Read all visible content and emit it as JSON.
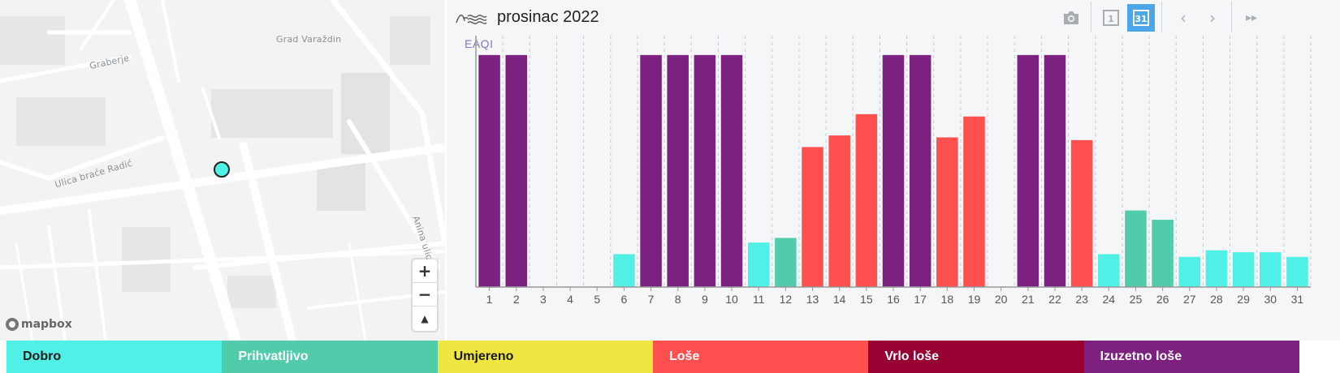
{
  "map": {
    "labels": {
      "grad": "Grad Varaždin",
      "graberje": "Graberje",
      "street1": "Ulica braće Radić",
      "street2": "Anina ulica"
    },
    "zoom_in": "+",
    "zoom_out": "−",
    "compass": "▲",
    "attribution": "mapbox",
    "station_color": "#50f0e6"
  },
  "toolbar": {
    "camera_icon": "camera-icon",
    "day_view": "1",
    "month_view": "31",
    "prev": "‹",
    "next": "›",
    "skip": "▸▸"
  },
  "chart_data": {
    "type": "bar",
    "title": "prosinac 2022",
    "ylabel": "EAQI",
    "categories": [
      "1",
      "2",
      "3",
      "4",
      "5",
      "6",
      "7",
      "8",
      "9",
      "10",
      "11",
      "12",
      "13",
      "14",
      "15",
      "16",
      "17",
      "18",
      "19",
      "20",
      "21",
      "22",
      "23",
      "24",
      "25",
      "26",
      "27",
      "28",
      "29",
      "30",
      "31"
    ],
    "values": [
      6,
      6,
      null,
      null,
      null,
      0.85,
      6,
      6,
      6,
      6,
      1.15,
      1.27,
      3.62,
      3.92,
      4.47,
      6,
      6,
      3.87,
      4.41,
      null,
      6,
      6,
      3.8,
      0.85,
      1.98,
      1.74,
      0.78,
      0.95,
      0.9,
      0.9,
      0.78
    ],
    "levels": [
      6,
      6,
      null,
      null,
      null,
      1,
      6,
      6,
      6,
      6,
      1,
      2,
      4,
      4,
      4,
      6,
      6,
      4,
      4,
      null,
      6,
      6,
      4,
      1,
      2,
      2,
      1,
      1,
      1,
      1,
      1
    ],
    "ylim": [
      0,
      6.5
    ],
    "grid": true
  },
  "legend": [
    {
      "label": "Dobro",
      "color": "#50f0e6",
      "text_color": "#1a1a1a"
    },
    {
      "label": "Prihvatljivo",
      "color": "#50ccaa",
      "text_color": "#ffffff"
    },
    {
      "label": "Umjereno",
      "color": "#f0e641",
      "text_color": "#1a1a1a"
    },
    {
      "label": "Loše",
      "color": "#ff5050",
      "text_color": "#ffffff"
    },
    {
      "label": "Vrlo loše",
      "color": "#960032",
      "text_color": "#ffffff"
    },
    {
      "label": "Izuzetno loše",
      "color": "#7d2181",
      "text_color": "#ffffff"
    }
  ]
}
